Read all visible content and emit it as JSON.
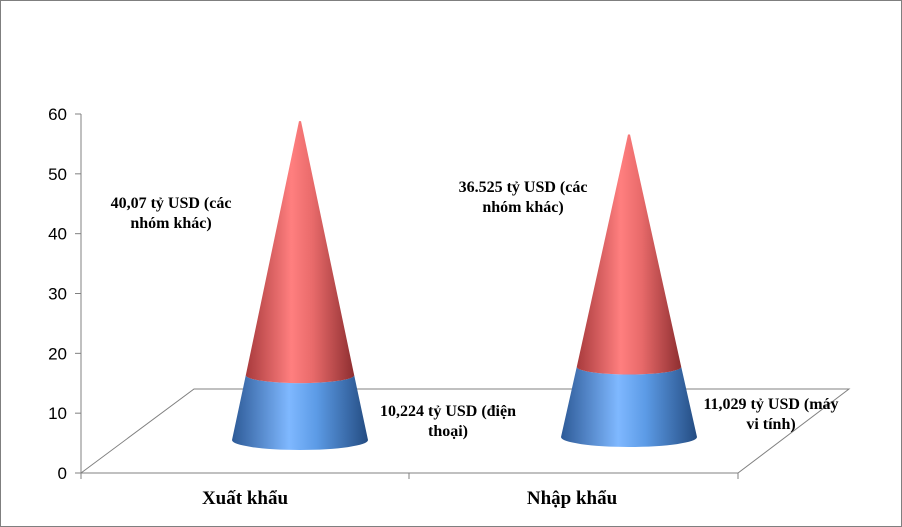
{
  "chart_data": {
    "type": "bar",
    "shape": "cone-3d-stacked",
    "categories": [
      "Xuất khẩu",
      "Nhập khẩu"
    ],
    "series": [
      {
        "values": [
          10.224,
          11.029
        ],
        "color": "#4a86d0"
      },
      {
        "values": [
          40.07,
          36.525
        ],
        "color": "#e05a5a"
      }
    ],
    "yticks": [
      "0",
      "10",
      "20",
      "30",
      "40",
      "50",
      "60"
    ],
    "ylim": [
      0,
      60
    ],
    "grid": false,
    "legend": "none",
    "data_labels": [
      {
        "category": "Xuất khẩu",
        "lines": [
          "40,07 tỷ USD (các",
          "nhóm khác)"
        ]
      },
      {
        "category": "Xuất khẩu",
        "lines": [
          "10,224 tỷ USD (điện",
          "thoại)"
        ]
      },
      {
        "category": "Nhập khẩu",
        "lines": [
          "36.525 tỷ USD (các",
          "nhóm khác)"
        ]
      },
      {
        "category": "Nhập khẩu",
        "lines": [
          "11,029 tỷ USD (máy",
          "vi tính)"
        ]
      }
    ]
  }
}
